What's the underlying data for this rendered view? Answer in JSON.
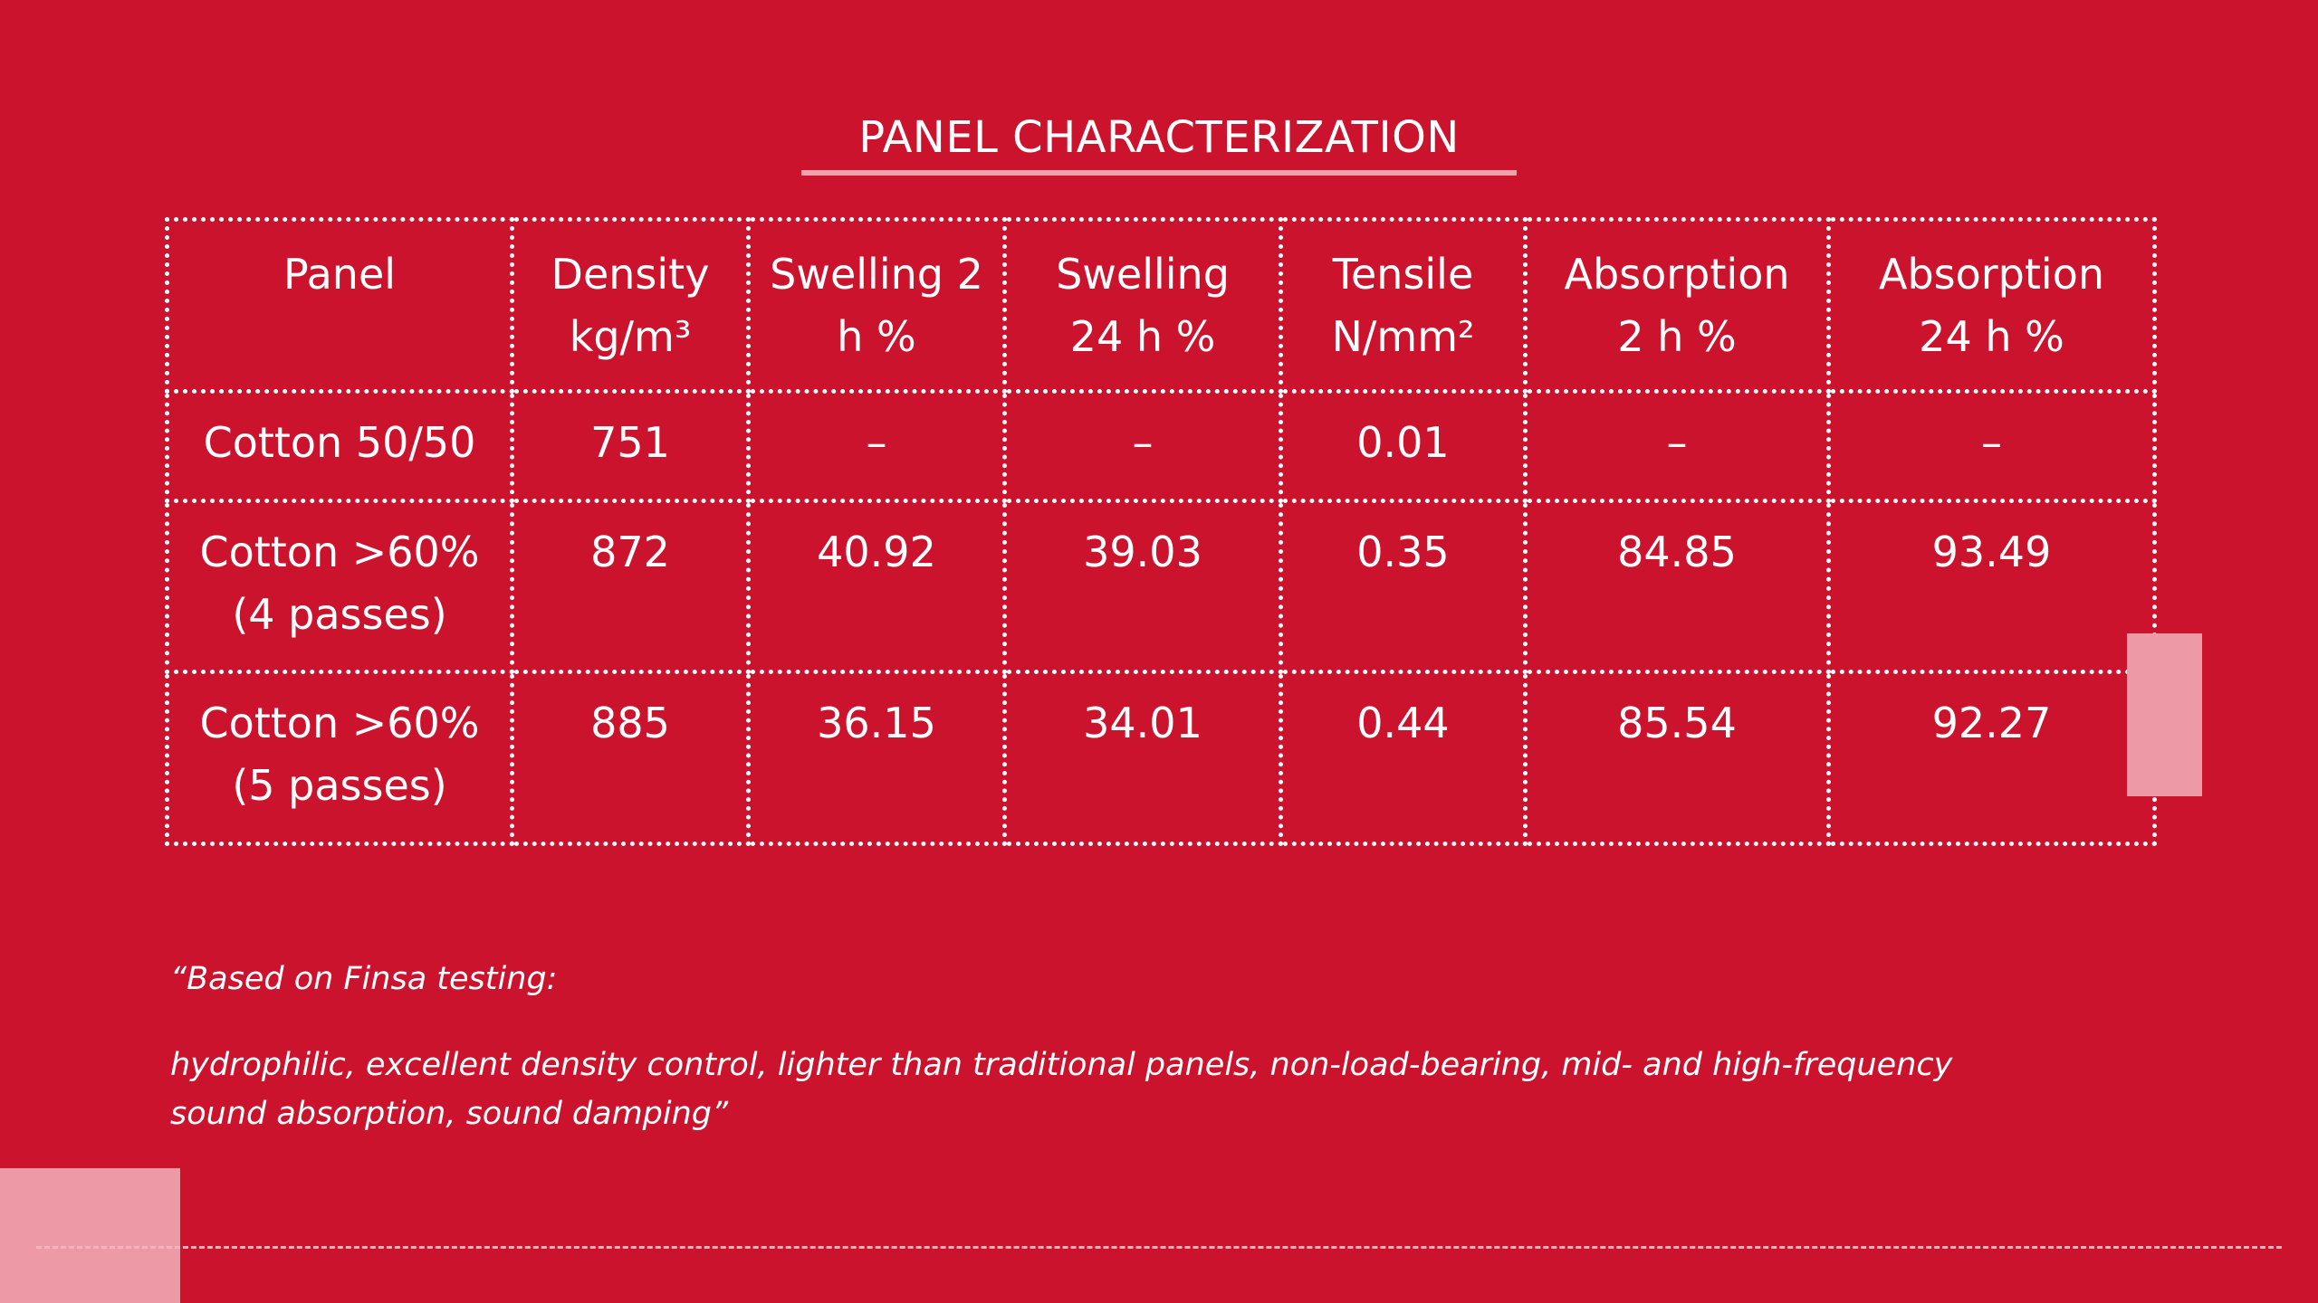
{
  "title": "PANEL CHARACTERIZATION",
  "table": {
    "headers": [
      "Panel",
      "Density\nkg/m³",
      "Swelling 2\nh %",
      "Swelling\n24 h %",
      "Tensile\nN/mm²",
      "Absorption\n2 h %",
      "Absorption\n24 h %"
    ],
    "rows": [
      [
        "Cotton 50/50",
        "751",
        "–",
        "–",
        "0.01",
        "–",
        "–"
      ],
      [
        "Cotton >60%\n(4 passes)",
        "872",
        "40.92",
        "39.03",
        "0.35",
        "84.85",
        "93.49"
      ],
      [
        "Cotton >60%\n(5 passes)",
        "885",
        "36.15",
        "34.01",
        "0.44",
        "85.54",
        "92.27"
      ]
    ]
  },
  "note": {
    "line1": "“Based on Finsa testing:",
    "line2": "hydrophilic, excellent density control,  lighter than traditional panels, non-load-bearing, mid- and high-frequency sound absorption, sound damping”"
  },
  "colors": {
    "background": "#cc132d",
    "accent": "#ec9ba6",
    "text": "#ffffff"
  }
}
